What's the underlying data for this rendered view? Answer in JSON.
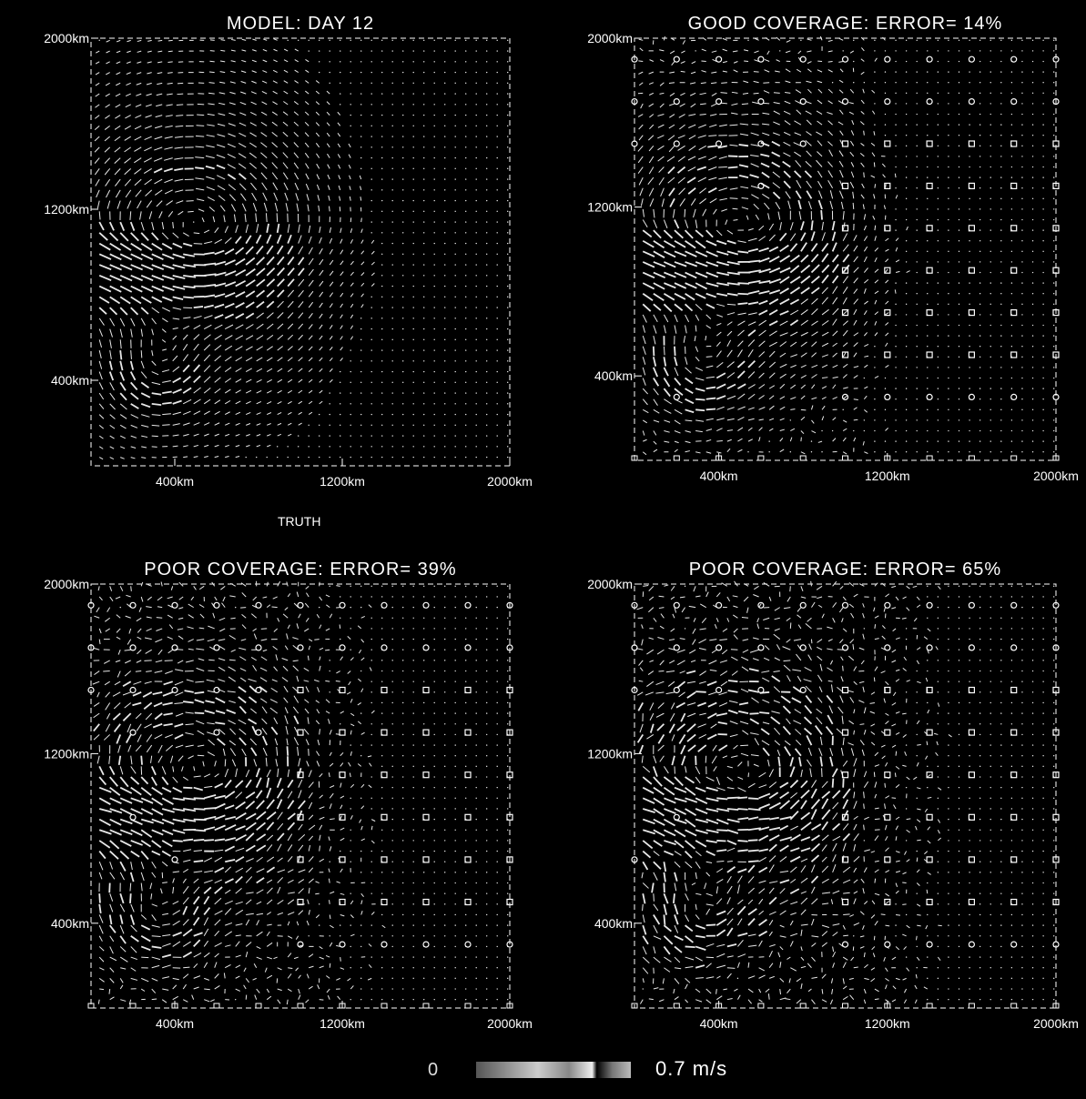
{
  "panels": [
    {
      "id": "truth",
      "title": "MODEL: DAY 12",
      "subtitle": "TRUTH",
      "sampling": "none",
      "error_pct": null
    },
    {
      "id": "good",
      "title": "GOOD COVERAGE: ERROR= 14%",
      "subtitle": "",
      "sampling": "grid",
      "error_pct": 14
    },
    {
      "id": "poor1",
      "title": "POOR COVERAGE: ERROR= 39%",
      "subtitle": "",
      "sampling": "grid",
      "error_pct": 39
    },
    {
      "id": "poor2",
      "title": "POOR COVERAGE: ERROR= 65%",
      "subtitle": "",
      "sampling": "grid",
      "error_pct": 65
    }
  ],
  "chart_data": {
    "type": "vector-field",
    "panel_count": 4,
    "x_ticks": [
      "400km",
      "1200km",
      "2000km"
    ],
    "y_ticks": [
      "400km",
      "1200km",
      "2000km"
    ],
    "x_tick_values": [
      400,
      1200,
      2000
    ],
    "y_tick_values": [
      400,
      1200,
      2000
    ],
    "xlim": [
      0,
      2000
    ],
    "ylim": [
      0,
      2000
    ],
    "units": "km",
    "eddy_center_km": [
      500,
      1050
    ],
    "colorbar": {
      "min_label": "0",
      "max_label": "0.7 m/s",
      "min": 0,
      "max": 0.7
    }
  },
  "colors": {
    "background": "#000000",
    "foreground": "#ffffff",
    "arrow": "#e8e8e8",
    "station": "#ffffff"
  }
}
